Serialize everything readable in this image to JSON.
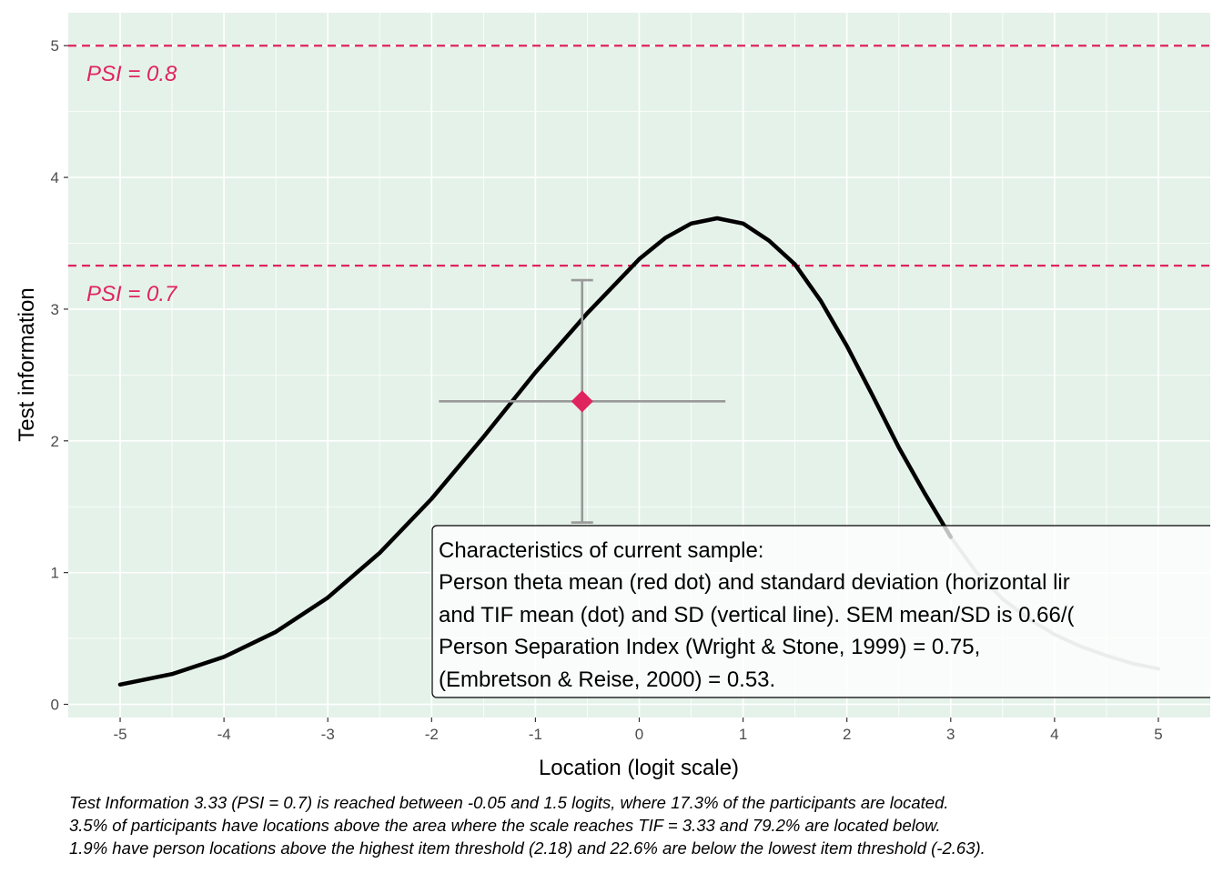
{
  "chart_data": {
    "type": "line",
    "xlabel": "Location (logit scale)",
    "ylabel": "Test information",
    "xlim": [
      -5.5,
      5.5
    ],
    "ylim": [
      -0.1,
      5.25
    ],
    "x_ticks": [
      "-5",
      "-4",
      "-3",
      "-2",
      "-1",
      "0",
      "1",
      "2",
      "3",
      "4",
      "5"
    ],
    "y_ticks": [
      "0",
      "1",
      "2",
      "3",
      "4",
      "5"
    ],
    "grid": true,
    "panel_background": "#e5f2ea",
    "curve": {
      "color_main": "#000000",
      "color_faded": "#b3b3b3",
      "faded_from_x": 3.2,
      "points": [
        [
          -5.0,
          0.15
        ],
        [
          -4.5,
          0.23
        ],
        [
          -4.0,
          0.36
        ],
        [
          -3.5,
          0.55
        ],
        [
          -3.0,
          0.81
        ],
        [
          -2.5,
          1.15
        ],
        [
          -2.0,
          1.56
        ],
        [
          -1.5,
          2.03
        ],
        [
          -1.0,
          2.52
        ],
        [
          -0.5,
          2.97
        ],
        [
          0.0,
          3.38
        ],
        [
          0.25,
          3.54
        ],
        [
          0.5,
          3.65
        ],
        [
          0.75,
          3.69
        ],
        [
          1.0,
          3.65
        ],
        [
          1.25,
          3.52
        ],
        [
          1.5,
          3.34
        ],
        [
          1.75,
          3.06
        ],
        [
          2.0,
          2.72
        ],
        [
          2.25,
          2.34
        ],
        [
          2.5,
          1.95
        ],
        [
          2.75,
          1.6
        ],
        [
          3.0,
          1.27
        ],
        [
          3.25,
          1.0
        ],
        [
          3.5,
          0.8
        ],
        [
          3.75,
          0.65
        ],
        [
          4.0,
          0.53
        ],
        [
          4.25,
          0.44
        ],
        [
          4.5,
          0.37
        ],
        [
          4.75,
          0.31
        ],
        [
          5.0,
          0.27
        ]
      ]
    },
    "reference_lines": [
      {
        "y": 5.0,
        "label": "PSI = 0.8",
        "color": "#e0245e"
      },
      {
        "y": 3.33,
        "label": "PSI = 0.7",
        "color": "#e0245e"
      }
    ],
    "sample_point": {
      "x": -0.55,
      "y": 2.3,
      "x_range": [
        -1.93,
        0.83
      ],
      "y_range": [
        1.38,
        3.22
      ],
      "point_color": "#e0245e",
      "errorbar_color": "#999999"
    },
    "annotation": {
      "lines": [
        "Characteristics of current sample:",
        "Person theta mean (red dot) and standard deviation (horizontal lir",
        "and TIF mean (dot) and SD (vertical line). SEM mean/SD is 0.66/(",
        "Person Separation Index (Wright & Stone, 1999) = 0.75,",
        "(Embretson & Reise, 2000) = 0.53."
      ]
    },
    "caption": [
      "Test Information 3.33 (PSI = 0.7) is reached between -0.05 and 1.5 logits, where 17.3% of the participants are located.",
      "3.5% of participants have locations above the area where the scale reaches TIF = 3.33 and 79.2% are located below.",
      "1.9% have person locations above the highest item threshold (2.18) and 22.6% are below the lowest item threshold (-2.63)."
    ]
  }
}
